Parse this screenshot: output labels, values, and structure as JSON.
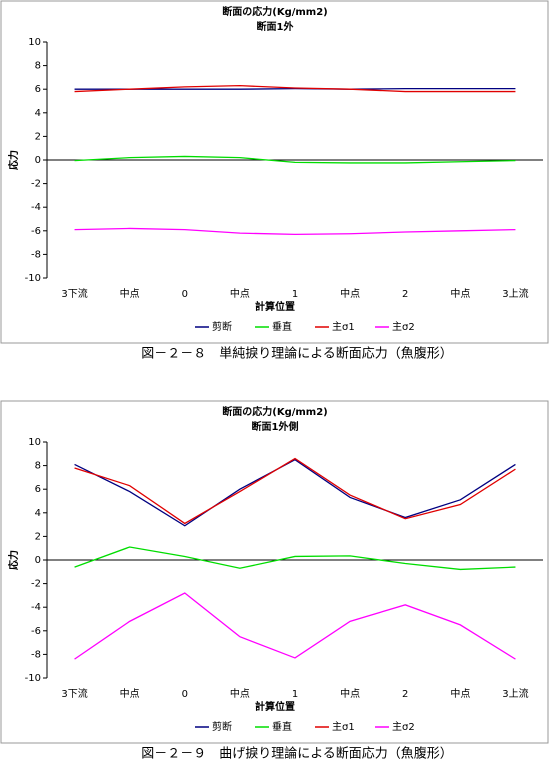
{
  "chart_data": [
    {
      "type": "line",
      "title": "断面の応力(Kg/mm2)",
      "subtitle": "断面1外",
      "x_label": "計算位置",
      "y_label": "応力",
      "caption": "図－２－８　単純捩り理論による断面応力（魚腹形）",
      "categories": [
        "3下流",
        "中点",
        "0",
        "中点",
        "1",
        "中点",
        "2",
        "中点",
        "3上流"
      ],
      "ylim": [
        -10,
        10
      ],
      "yticks": [
        -10,
        -8,
        -6,
        -4,
        -2,
        0,
        2,
        4,
        6,
        8,
        10
      ],
      "series": [
        {
          "name": "剪断",
          "color": "#000080",
          "values": [
            6.0,
            6.0,
            6.0,
            6.0,
            6.05,
            6.0,
            6.05,
            6.05,
            6.05
          ]
        },
        {
          "name": "垂直",
          "color": "#00dd00",
          "values": [
            -0.05,
            0.2,
            0.3,
            0.2,
            -0.2,
            -0.25,
            -0.25,
            -0.15,
            -0.05
          ]
        },
        {
          "name": "主σ1",
          "color": "#e00000",
          "values": [
            5.8,
            6.0,
            6.2,
            6.3,
            6.1,
            6.0,
            5.8,
            5.8,
            5.8
          ]
        },
        {
          "name": "主σ2",
          "color": "#ff00ff",
          "values": [
            -5.9,
            -5.8,
            -5.9,
            -6.2,
            -6.3,
            -6.25,
            -6.1,
            -6.0,
            -5.9
          ]
        }
      ]
    },
    {
      "type": "line",
      "title": "断面の応力(Kg/mm2)",
      "subtitle": "断面1外側",
      "x_label": "計算位置",
      "y_label": "応力",
      "caption": "図－２－９　曲げ捩り理論による断面応力（魚腹形）",
      "categories": [
        "3下流",
        "中点",
        "0",
        "中点",
        "1",
        "中点",
        "2",
        "中点",
        "3上流"
      ],
      "ylim": [
        -10,
        10
      ],
      "yticks": [
        -10,
        -8,
        -6,
        -4,
        -2,
        0,
        2,
        4,
        6,
        8,
        10
      ],
      "series": [
        {
          "name": "剪断",
          "color": "#000080",
          "values": [
            8.1,
            5.8,
            2.9,
            6.0,
            8.5,
            5.3,
            3.6,
            5.1,
            8.1
          ]
        },
        {
          "name": "垂直",
          "color": "#00dd00",
          "values": [
            -0.6,
            1.1,
            0.3,
            -0.7,
            0.3,
            0.35,
            -0.3,
            -0.8,
            -0.6
          ]
        },
        {
          "name": "主σ1",
          "color": "#e00000",
          "values": [
            7.8,
            6.3,
            3.1,
            5.8,
            8.6,
            5.5,
            3.5,
            4.7,
            7.7
          ]
        },
        {
          "name": "主σ2",
          "color": "#ff00ff",
          "values": [
            -8.4,
            -5.2,
            -2.8,
            -6.5,
            -8.3,
            -5.2,
            -3.8,
            -5.5,
            -8.4
          ]
        }
      ]
    }
  ]
}
